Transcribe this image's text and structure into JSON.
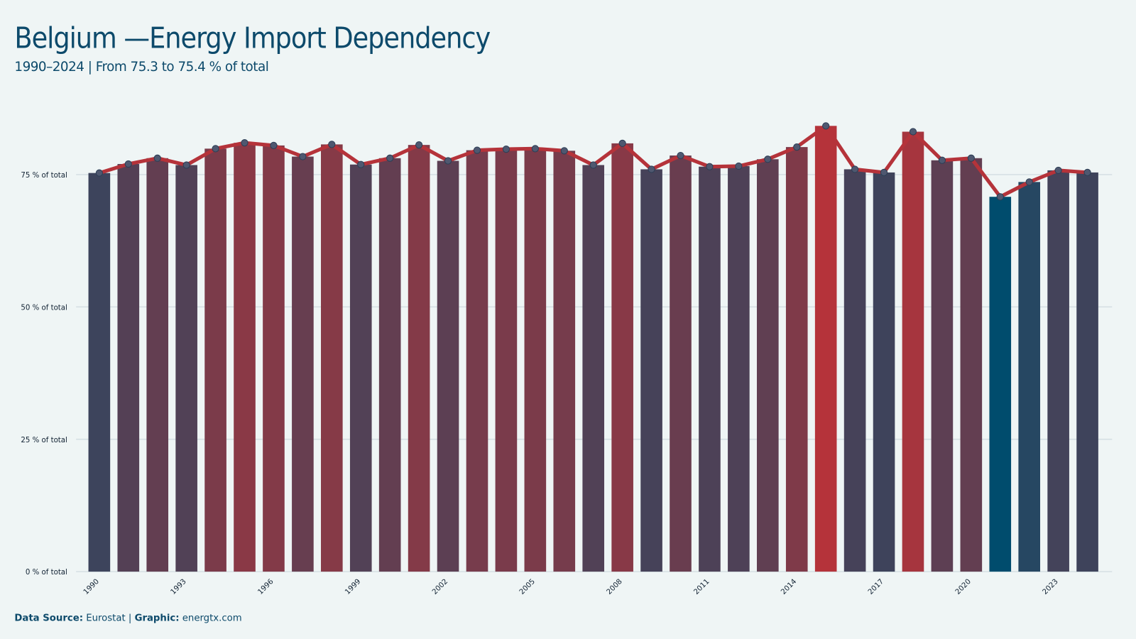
{
  "chart_data": {
    "type": "bar",
    "title": "Belgium —Energy Import Dependency",
    "subtitle": "1990–2024 | From 75.3 to 75.4 % of total",
    "categories": [
      "1990",
      null,
      null,
      "1993",
      null,
      null,
      "1996",
      null,
      null,
      "1999",
      null,
      null,
      "2002",
      null,
      null,
      "2005",
      null,
      null,
      "2008",
      null,
      null,
      "2011",
      null,
      null,
      "2014",
      null,
      null,
      "2017",
      null,
      null,
      "2020",
      null,
      null,
      "2023",
      null
    ],
    "values": [
      75.3,
      77.0,
      78.1,
      76.8,
      79.9,
      81.0,
      80.5,
      78.4,
      80.7,
      76.9,
      78.1,
      80.6,
      77.6,
      79.6,
      79.8,
      79.9,
      79.5,
      76.8,
      80.9,
      76.0,
      78.6,
      76.5,
      76.6,
      77.9,
      80.2,
      84.2,
      76.0,
      75.4,
      83.1,
      77.7,
      78.1,
      70.8,
      73.6,
      75.8,
      75.4
    ],
    "color_scale": [
      "#004c6d",
      "#b5333a"
    ],
    "line_color": "#b5333a",
    "point_color": "#4f5870",
    "ylim": [
      0,
      88
    ],
    "yticks": [
      {
        "value": 0,
        "label": "0 % of total"
      },
      {
        "value": 25,
        "label": "25 % of total"
      },
      {
        "value": 50,
        "label": "50 % of total"
      },
      {
        "value": 75,
        "label": "75 % of total"
      }
    ],
    "grid": true,
    "footer": {
      "source_label": "Data Source:",
      "source": "Eurostat",
      "separator": "|",
      "graphic_label": "Graphic:",
      "graphic": "energtx.com"
    }
  }
}
